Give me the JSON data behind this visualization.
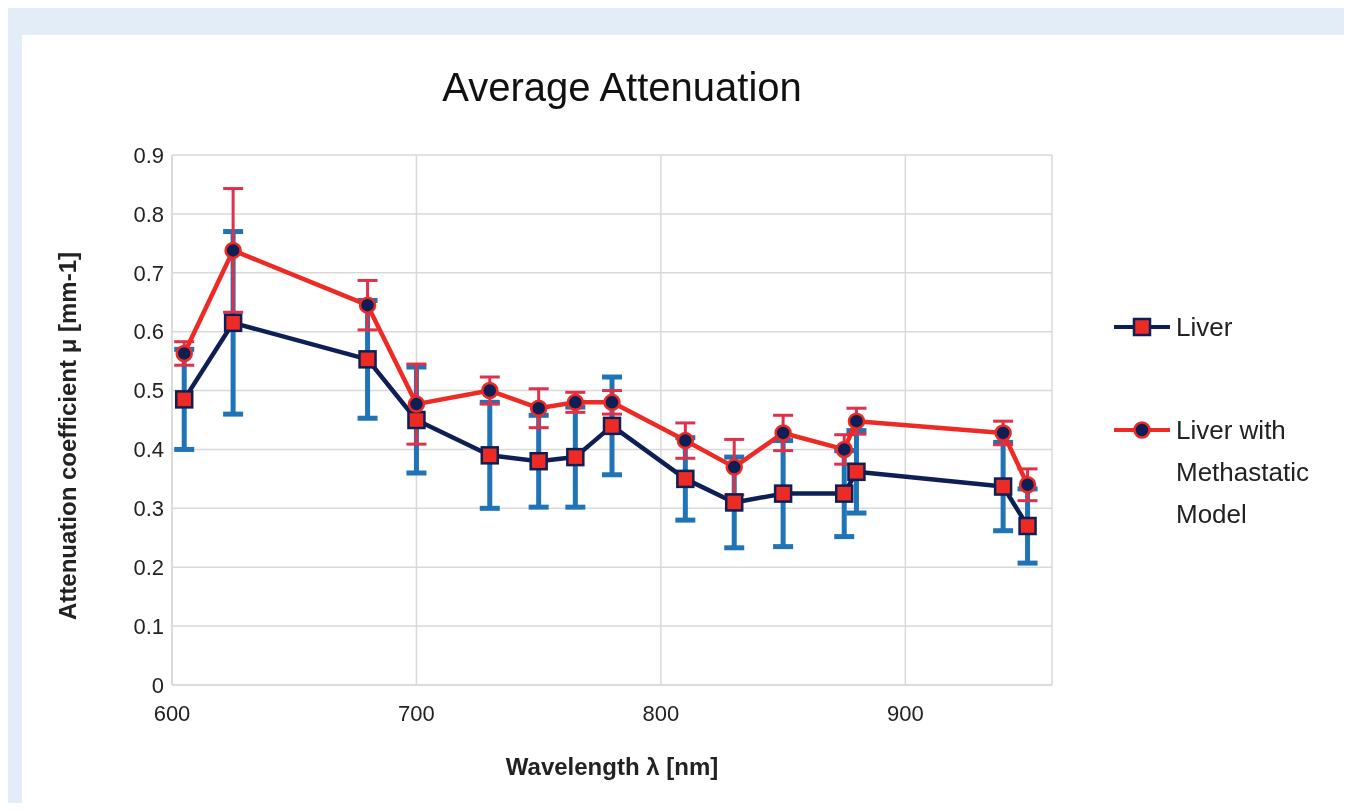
{
  "chart_data": {
    "type": "line",
    "title": "Average Attenuation",
    "xlabel": "Wavelength λ [nm]",
    "ylabel": "Attenuation coefficient μ [mm-1]",
    "x": [
      605,
      625,
      680,
      700,
      730,
      750,
      765,
      780,
      810,
      830,
      850,
      875,
      880,
      940,
      950
    ],
    "series": [
      {
        "name": "Liver",
        "color": "#0e1f55",
        "marker": "square",
        "values": [
          0.485,
          0.615,
          0.553,
          0.45,
          0.39,
          0.38,
          0.387,
          0.44,
          0.35,
          0.31,
          0.325,
          0.325,
          0.362,
          0.337,
          0.27
        ],
        "errors": [
          0.085,
          0.155,
          0.1,
          0.09,
          0.09,
          0.078,
          0.085,
          0.083,
          0.07,
          0.077,
          0.09,
          0.073,
          0.07,
          0.075,
          0.063
        ]
      },
      {
        "name": "Liver with Methastatic Model",
        "color": "#ee2a24",
        "marker": "circle",
        "values": [
          0.563,
          0.738,
          0.645,
          0.477,
          0.5,
          0.47,
          0.48,
          0.48,
          0.415,
          0.37,
          0.428,
          0.4,
          0.448,
          0.428,
          0.34
        ],
        "errors": [
          0.02,
          0.105,
          0.042,
          0.068,
          0.023,
          0.033,
          0.017,
          0.02,
          0.03,
          0.047,
          0.03,
          0.025,
          0.022,
          0.02,
          0.027
        ]
      }
    ],
    "xlim": [
      600,
      960
    ],
    "xticks": [
      600,
      700,
      800,
      900
    ],
    "ylim": [
      0,
      0.9
    ],
    "yticks": [
      0,
      0.1,
      0.2,
      0.3,
      0.4,
      0.5,
      0.6,
      0.7,
      0.8,
      0.9
    ],
    "grid": true,
    "legend": "right",
    "line_style": "solid"
  }
}
